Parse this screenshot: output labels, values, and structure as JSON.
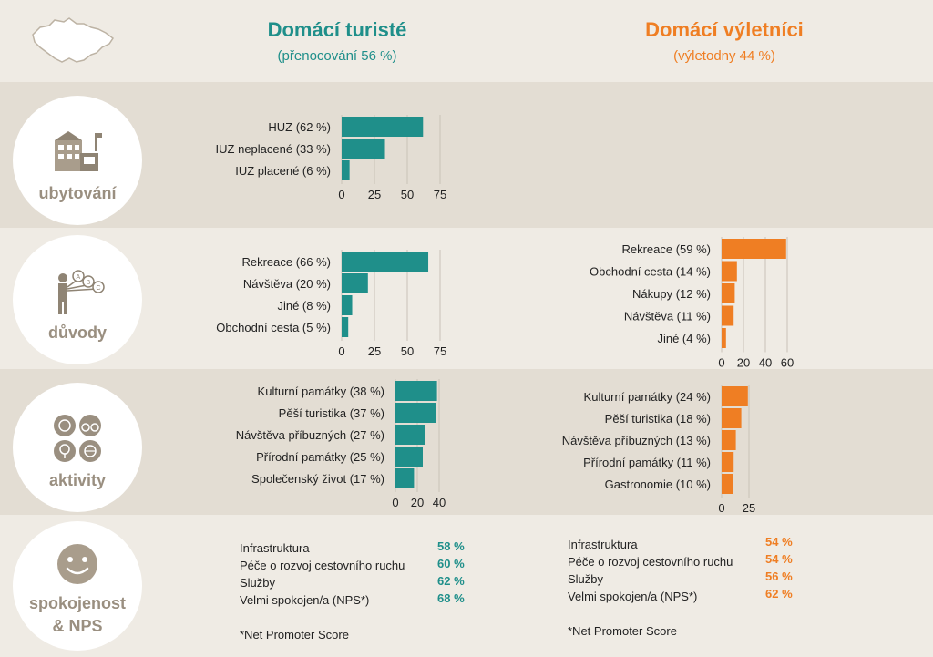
{
  "header": {
    "left_title": "Domácí turisté",
    "left_sub": "(přenocování 56 %)",
    "right_title": "Domácí výletníci",
    "right_sub": "(výletodny 44 %)"
  },
  "colors": {
    "teal": "#1f8f8a",
    "orange": "#ef7e23",
    "grid": "#c9c2b7"
  },
  "sections": {
    "ubytovani": {
      "label": "ubytování",
      "icon": "building-icon"
    },
    "duvody": {
      "label": "důvody",
      "icon": "person-abc-icon"
    },
    "aktivity": {
      "label": "aktivity",
      "icon": "activities-icon"
    },
    "spokojenost": {
      "label_line1": "spokojenost",
      "label_line2": "& NPS",
      "icon": "smiley-icon"
    }
  },
  "chart_data": [
    {
      "id": "ubytovani-turiste",
      "type": "bar",
      "orientation": "horizontal",
      "color": "#1f8f8a",
      "categories": [
        "HUZ (62 %)",
        "IUZ neplacené (33 %)",
        "IUZ placené (6 %)"
      ],
      "values": [
        62,
        33,
        6
      ],
      "xlim": [
        0,
        75
      ],
      "ticks": [
        0,
        25,
        50,
        75
      ]
    },
    {
      "id": "duvody-turiste",
      "type": "bar",
      "orientation": "horizontal",
      "color": "#1f8f8a",
      "categories": [
        "Rekreace (66 %)",
        "Návštěva (20 %)",
        "Jiné (8 %)",
        "Obchodní cesta (5 %)"
      ],
      "values": [
        66,
        20,
        8,
        5
      ],
      "xlim": [
        0,
        75
      ],
      "ticks": [
        0,
        25,
        50,
        75
      ]
    },
    {
      "id": "duvody-vyletnici",
      "type": "bar",
      "orientation": "horizontal",
      "color": "#ef7e23",
      "categories": [
        "Rekreace (59 %)",
        "Obchodní cesta (14 %)",
        "Nákupy (12 %)",
        "Návštěva (11 %)",
        "Jiné (4 %)"
      ],
      "values": [
        59,
        14,
        12,
        11,
        4
      ],
      "xlim": [
        0,
        60
      ],
      "ticks": [
        0,
        20,
        40,
        60
      ]
    },
    {
      "id": "aktivity-turiste",
      "type": "bar",
      "orientation": "horizontal",
      "color": "#1f8f8a",
      "categories": [
        "Kulturní památky (38 %)",
        "Pěší turistika (37 %)",
        "Návštěva příbuzných (27 %)",
        "Přírodní památky (25 %)",
        "Společenský život (17 %)"
      ],
      "values": [
        38,
        37,
        27,
        25,
        17
      ],
      "xlim": [
        0,
        40
      ],
      "ticks": [
        0,
        20,
        40
      ]
    },
    {
      "id": "aktivity-vyletnici",
      "type": "bar",
      "orientation": "horizontal",
      "color": "#ef7e23",
      "categories": [
        "Kulturní památky (24 %)",
        "Pěší turistika (18 %)",
        "Návštěva příbuzných (13 %)",
        "Přírodní památky (11 %)",
        "Gastronomie (10 %)"
      ],
      "values": [
        24,
        18,
        13,
        11,
        10
      ],
      "xlim": [
        0,
        25
      ],
      "ticks": [
        0,
        25
      ]
    }
  ],
  "satisfaction": {
    "left": {
      "rows": [
        {
          "label": "Infrastruktura",
          "value": "58 %"
        },
        {
          "label": "Péče o rozvoj cestovního ruchu",
          "value": "60 %"
        },
        {
          "label": "Služby",
          "value": "62 %"
        },
        {
          "label": "Velmi spokojen/a (NPS*)",
          "value": "68 %"
        }
      ],
      "footnote": "*Net Promoter Score"
    },
    "right": {
      "rows": [
        {
          "label": "Infrastruktura",
          "value": "54 %"
        },
        {
          "label": "Péče o rozvoj cestovního ruchu",
          "value": "54 %"
        },
        {
          "label": "Služby",
          "value": "56 %"
        },
        {
          "label": "Velmi spokojen/a (NPS*)",
          "value": "62 %"
        }
      ],
      "footnote": "*Net Promoter Score"
    }
  }
}
